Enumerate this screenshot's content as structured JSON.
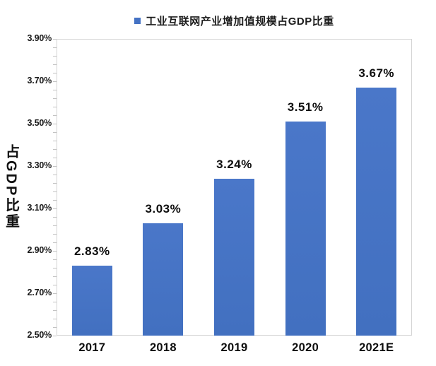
{
  "legend": {
    "label": "工业互联网产业增加值规模占GDP比重",
    "marker_color": "#4472C4"
  },
  "y_axis": {
    "title": "占GDP比重"
  },
  "chart_data": {
    "type": "bar",
    "title": "",
    "legend_entries": [
      "工业互联网产业增加值规模占GDP比重"
    ],
    "legend_position": "top",
    "categories": [
      "2017",
      "2018",
      "2019",
      "2020",
      "2021E"
    ],
    "values": [
      2.83,
      3.03,
      3.24,
      3.51,
      3.67
    ],
    "value_labels": [
      "2.83%",
      "3.03%",
      "3.24%",
      "3.51%",
      "3.67%"
    ],
    "xlabel": "",
    "ylabel": "占GDP比重",
    "ylim": [
      2.5,
      3.9
    ],
    "yticks": [
      2.5,
      2.7,
      2.9,
      3.1,
      3.3,
      3.5,
      3.7,
      3.9
    ],
    "ytick_labels": [
      "2.50%",
      "2.70%",
      "2.90%",
      "3.10%",
      "3.30%",
      "3.50%",
      "3.70%",
      "3.90%"
    ],
    "grid": false,
    "bar_color": "#4472C4",
    "plot_border_color": "#d4d4d4",
    "text_color": "#0d0d0d"
  }
}
